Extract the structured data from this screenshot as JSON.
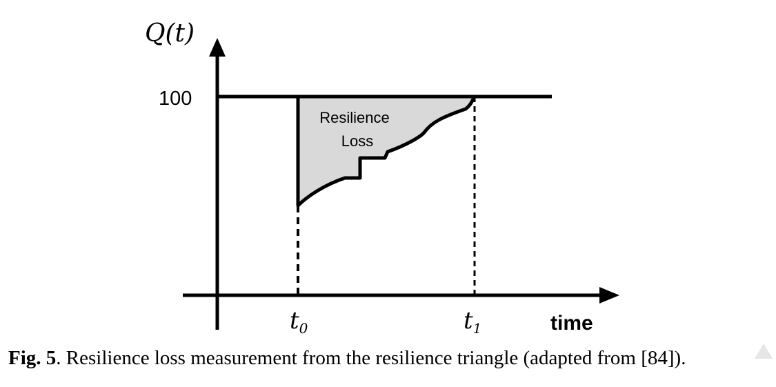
{
  "diagram": {
    "y_axis_label": "Q(t)",
    "y_level_label": "100",
    "area_label_line1": "Resilience",
    "area_label_line2": "Loss",
    "t0_label": "t",
    "t0_sub": "0",
    "t1_label": "t",
    "t1_sub": "1",
    "x_axis_label": "time",
    "fill_color": "#d9d9d9",
    "line_color": "#000000"
  },
  "caption": {
    "fig_label": "Fig. 5",
    "text": ". Resilience loss measurement from the resilience triangle (adapted from [84])."
  }
}
